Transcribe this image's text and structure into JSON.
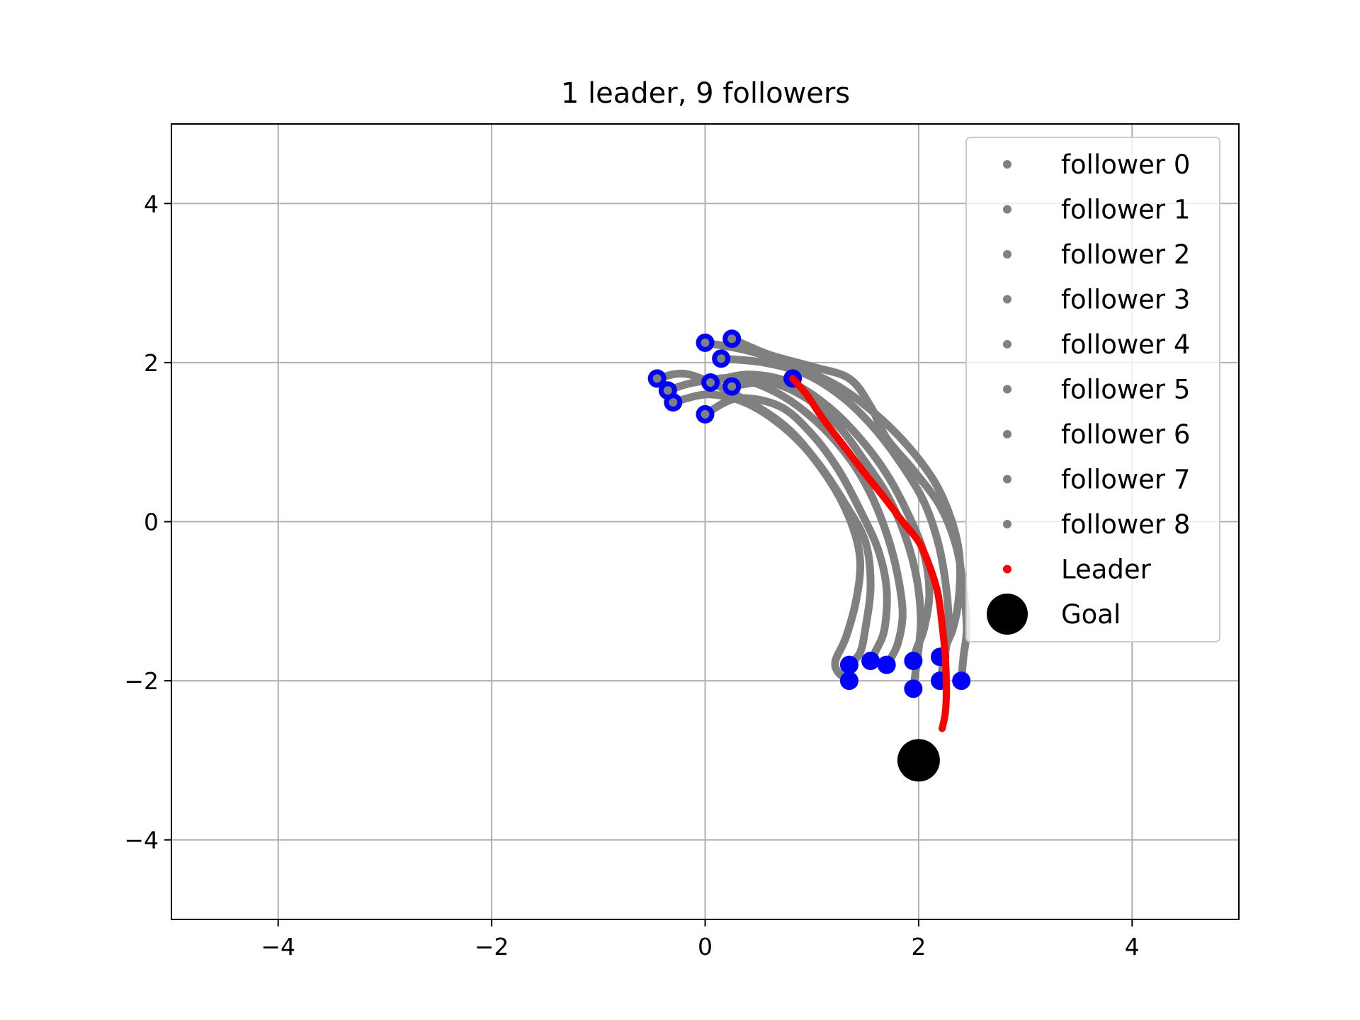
{
  "chart_data": {
    "type": "scatter",
    "title": "1 leader, 9 followers",
    "xlabel": "",
    "ylabel": "",
    "xlim": [
      -5,
      5
    ],
    "ylim": [
      -5,
      5
    ],
    "xticks": [
      -4,
      -2,
      0,
      2,
      4
    ],
    "yticks": [
      -4,
      -2,
      0,
      2,
      4
    ],
    "xtick_labels": [
      "−4",
      "−2",
      "0",
      "2",
      "4"
    ],
    "ytick_labels": [
      "−4",
      "−2",
      "0",
      "2",
      "4"
    ],
    "grid": true,
    "legend_position": "top-right",
    "colors": {
      "follower": "#808080",
      "leader": "#ff0000",
      "endpoint": "#0000ff",
      "goal": "#000000",
      "grid": "#b0b0b0"
    },
    "series": [
      {
        "name": "follower 0",
        "color": "#808080",
        "start": [
          -0.45,
          1.8
        ],
        "end": [
          1.35,
          -1.8
        ],
        "points": [
          [
            -0.45,
            1.8
          ],
          [
            -0.15,
            1.85
          ],
          [
            0.35,
            1.55
          ],
          [
            0.75,
            1.2
          ],
          [
            1.05,
            0.75
          ],
          [
            1.3,
            0.25
          ],
          [
            1.5,
            -0.25
          ],
          [
            1.55,
            -0.8
          ],
          [
            1.5,
            -1.35
          ],
          [
            1.45,
            -1.65
          ],
          [
            1.35,
            -1.8
          ]
        ]
      },
      {
        "name": "follower 1",
        "color": "#808080",
        "start": [
          -0.3,
          1.5
        ],
        "end": [
          1.35,
          -2.0
        ],
        "points": [
          [
            -0.3,
            1.5
          ],
          [
            0.05,
            1.6
          ],
          [
            0.45,
            1.45
          ],
          [
            0.85,
            1.05
          ],
          [
            1.15,
            0.55
          ],
          [
            1.35,
            0.05
          ],
          [
            1.45,
            -0.45
          ],
          [
            1.42,
            -0.95
          ],
          [
            1.32,
            -1.45
          ],
          [
            1.22,
            -1.75
          ],
          [
            1.25,
            -1.9
          ],
          [
            1.35,
            -2.0
          ]
        ]
      },
      {
        "name": "follower 2",
        "color": "#808080",
        "start": [
          0.0,
          1.35
        ],
        "end": [
          1.55,
          -1.75
        ],
        "points": [
          [
            0.0,
            1.35
          ],
          [
            0.3,
            1.55
          ],
          [
            0.7,
            1.45
          ],
          [
            1.0,
            1.1
          ],
          [
            1.25,
            0.65
          ],
          [
            1.45,
            0.15
          ],
          [
            1.62,
            -0.35
          ],
          [
            1.7,
            -0.85
          ],
          [
            1.68,
            -1.35
          ],
          [
            1.6,
            -1.62
          ],
          [
            1.55,
            -1.75
          ]
        ]
      },
      {
        "name": "follower 3",
        "color": "#808080",
        "start": [
          -0.35,
          1.65
        ],
        "end": [
          1.7,
          -1.8
        ],
        "points": [
          [
            -0.35,
            1.65
          ],
          [
            -0.1,
            1.75
          ],
          [
            0.3,
            1.8
          ],
          [
            0.7,
            1.6
          ],
          [
            1.05,
            1.25
          ],
          [
            1.35,
            0.8
          ],
          [
            1.55,
            0.35
          ],
          [
            1.7,
            -0.15
          ],
          [
            1.8,
            -0.65
          ],
          [
            1.85,
            -1.15
          ],
          [
            1.8,
            -1.55
          ],
          [
            1.7,
            -1.8
          ]
        ]
      },
      {
        "name": "follower 4",
        "color": "#808080",
        "start": [
          0.05,
          1.75
        ],
        "end": [
          1.95,
          -1.75
        ],
        "points": [
          [
            0.05,
            1.75
          ],
          [
            0.4,
            1.85
          ],
          [
            0.8,
            1.75
          ],
          [
            1.15,
            1.45
          ],
          [
            1.45,
            1.05
          ],
          [
            1.7,
            0.6
          ],
          [
            1.9,
            0.1
          ],
          [
            2.05,
            -0.4
          ],
          [
            2.1,
            -0.9
          ],
          [
            2.05,
            -1.35
          ],
          [
            1.98,
            -1.6
          ],
          [
            1.95,
            -1.75
          ]
        ]
      },
      {
        "name": "follower 5",
        "color": "#808080",
        "start": [
          0.25,
          1.7
        ],
        "end": [
          1.95,
          -2.1
        ],
        "points": [
          [
            0.25,
            1.7
          ],
          [
            0.6,
            1.75
          ],
          [
            0.95,
            1.55
          ],
          [
            1.25,
            1.2
          ],
          [
            1.5,
            0.75
          ],
          [
            1.72,
            0.3
          ],
          [
            1.88,
            -0.2
          ],
          [
            1.98,
            -0.7
          ],
          [
            2.02,
            -1.2
          ],
          [
            2.0,
            -1.6
          ],
          [
            1.97,
            -1.9
          ],
          [
            1.95,
            -2.1
          ]
        ]
      },
      {
        "name": "follower 6",
        "color": "#808080",
        "start": [
          0.15,
          2.05
        ],
        "end": [
          2.2,
          -2.0
        ],
        "points": [
          [
            0.15,
            2.05
          ],
          [
            0.55,
            2.0
          ],
          [
            0.95,
            1.85
          ],
          [
            1.3,
            1.55
          ],
          [
            1.6,
            1.15
          ],
          [
            1.85,
            0.7
          ],
          [
            2.05,
            0.25
          ],
          [
            2.18,
            -0.25
          ],
          [
            2.25,
            -0.75
          ],
          [
            2.28,
            -1.25
          ],
          [
            2.25,
            -1.65
          ],
          [
            2.2,
            -2.0
          ]
        ]
      },
      {
        "name": "follower 7",
        "color": "#808080",
        "start": [
          0.0,
          2.25
        ],
        "end": [
          2.2,
          -1.7
        ],
        "points": [
          [
            0.0,
            2.25
          ],
          [
            0.4,
            2.15
          ],
          [
            0.85,
            1.95
          ],
          [
            1.25,
            1.7
          ],
          [
            1.6,
            1.35
          ],
          [
            1.9,
            0.95
          ],
          [
            2.15,
            0.5
          ],
          [
            2.3,
            0.05
          ],
          [
            2.38,
            -0.4
          ],
          [
            2.38,
            -0.9
          ],
          [
            2.32,
            -1.35
          ],
          [
            2.2,
            -1.7
          ]
        ]
      },
      {
        "name": "follower 8",
        "color": "#808080",
        "start": [
          0.25,
          2.3
        ],
        "end": [
          2.4,
          -2.0
        ],
        "points": [
          [
            0.25,
            2.3
          ],
          [
            0.6,
            2.1
          ],
          [
            1.0,
            1.95
          ],
          [
            1.35,
            1.8
          ],
          [
            1.55,
            1.45
          ],
          [
            1.7,
            1.05
          ],
          [
            1.95,
            0.65
          ],
          [
            2.2,
            0.2
          ],
          [
            2.35,
            -0.3
          ],
          [
            2.42,
            -0.85
          ],
          [
            2.45,
            -1.35
          ],
          [
            2.42,
            -1.7
          ],
          [
            2.4,
            -2.0
          ]
        ]
      },
      {
        "name": "Leader",
        "color": "#ff0000",
        "start": [
          0.82,
          1.8
        ],
        "end": [
          2.22,
          -2.6
        ],
        "points": [
          [
            0.82,
            1.8
          ],
          [
            0.95,
            1.6
          ],
          [
            1.1,
            1.3
          ],
          [
            1.3,
            0.95
          ],
          [
            1.5,
            0.6
          ],
          [
            1.68,
            0.3
          ],
          [
            1.85,
            0.0
          ],
          [
            2.0,
            -0.25
          ],
          [
            2.1,
            -0.55
          ],
          [
            2.18,
            -0.9
          ],
          [
            2.22,
            -1.3
          ],
          [
            2.25,
            -1.7
          ],
          [
            2.26,
            -2.1
          ],
          [
            2.25,
            -2.4
          ],
          [
            2.22,
            -2.6
          ]
        ]
      }
    ],
    "goal": {
      "name": "Goal",
      "x": 2.0,
      "y": -3.0
    },
    "legend": [
      {
        "label": "follower 0",
        "marker": "small-dot",
        "color": "#808080"
      },
      {
        "label": "follower 1",
        "marker": "small-dot",
        "color": "#808080"
      },
      {
        "label": "follower 2",
        "marker": "small-dot",
        "color": "#808080"
      },
      {
        "label": "follower 3",
        "marker": "small-dot",
        "color": "#808080"
      },
      {
        "label": "follower 4",
        "marker": "small-dot",
        "color": "#808080"
      },
      {
        "label": "follower 5",
        "marker": "small-dot",
        "color": "#808080"
      },
      {
        "label": "follower 6",
        "marker": "small-dot",
        "color": "#808080"
      },
      {
        "label": "follower 7",
        "marker": "small-dot",
        "color": "#808080"
      },
      {
        "label": "follower 8",
        "marker": "small-dot",
        "color": "#808080"
      },
      {
        "label": "Leader",
        "marker": "small-dot",
        "color": "#ff0000"
      },
      {
        "label": "Goal",
        "marker": "large-dot",
        "color": "#000000"
      }
    ]
  }
}
